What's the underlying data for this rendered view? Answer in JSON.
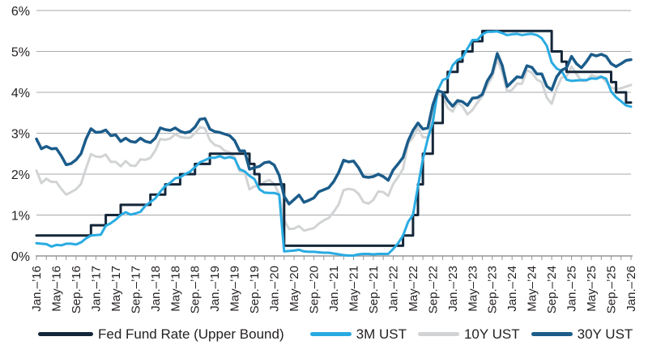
{
  "chart_data": {
    "type": "line",
    "title": "",
    "xlabel": "",
    "ylabel": "",
    "ylim": [
      0,
      6
    ],
    "grid": "horizontal",
    "legend_position": "bottom",
    "axis_color": "#939598",
    "gridline_color": "#a7a9ac",
    "text_color": "#231f20",
    "y_tick_labels": [
      "0%",
      "1%",
      "2%",
      "3%",
      "4%",
      "5%",
      "6%"
    ],
    "x_start": "Jan 2016",
    "x_end": "Jan 2026",
    "months_per_point": 1,
    "minor_tick_every_months": 2,
    "label_every_months": 4,
    "x_tick_labels": [
      "Jan.–’16",
      "May–’16",
      "Sep.–’16",
      "Jan.–’17",
      "May–’17",
      "Sep.–’17",
      "Jan.–’18",
      "May–’18",
      "Sep.–’18",
      "Jan.–’19",
      "May–’19",
      "Sep.–’19",
      "Jan.–’20",
      "May–’20",
      "Sep.–’20",
      "Jan.–’21",
      "May–’21",
      "Sep.–’21",
      "Jan.–’22",
      "May–’22",
      "Sep.–’22",
      "Jan.–’23",
      "May–’23",
      "Sep.–’23",
      "Jan.–’24",
      "May–’24",
      "Sep.–’24",
      "Jan.–’25",
      "May–’25",
      "Sep.–’25",
      "Jan.–’26"
    ],
    "series": [
      {
        "id": "fed-fund-rate",
        "name": "Fed Fund Rate (Upper Bound)",
        "color": "#142639",
        "width": 3,
        "step": true,
        "z": 2,
        "values": [
          0.5,
          0.5,
          0.5,
          0.5,
          0.5,
          0.5,
          0.5,
          0.5,
          0.5,
          0.5,
          0.5,
          0.75,
          0.75,
          0.75,
          1,
          1,
          1,
          1.25,
          1.25,
          1.25,
          1.25,
          1.25,
          1.25,
          1.5,
          1.5,
          1.5,
          1.75,
          1.75,
          1.75,
          2,
          2,
          2,
          2.25,
          2.25,
          2.25,
          2.5,
          2.5,
          2.5,
          2.5,
          2.5,
          2.5,
          2.5,
          2.5,
          2.25,
          2,
          1.75,
          1.75,
          1.75,
          1.75,
          1.75,
          0.25,
          0.25,
          0.25,
          0.25,
          0.25,
          0.25,
          0.25,
          0.25,
          0.25,
          0.25,
          0.25,
          0.25,
          0.25,
          0.25,
          0.25,
          0.25,
          0.25,
          0.25,
          0.25,
          0.25,
          0.25,
          0.25,
          0.25,
          0.25,
          0.5,
          0.5,
          1,
          1.75,
          2.5,
          2.5,
          3.25,
          3.25,
          4,
          4.5,
          4.5,
          4.75,
          5,
          5,
          5.25,
          5.25,
          5.5,
          5.5,
          5.5,
          5.5,
          5.5,
          5.5,
          5.5,
          5.5,
          5.5,
          5.5,
          5.5,
          5.5,
          5.5,
          5.5,
          5,
          5,
          4.75,
          4.5,
          4.5,
          4.5,
          4.5,
          4.5,
          4.5,
          4.5,
          4.5,
          4.5,
          4.25,
          4,
          4,
          3.75,
          3.75
        ]
      },
      {
        "id": "3m-ust",
        "name": "3M UST",
        "color": "#29abe2",
        "width": 3,
        "step": false,
        "z": 3,
        "values": [
          0.31,
          0.3,
          0.29,
          0.23,
          0.27,
          0.26,
          0.3,
          0.3,
          0.28,
          0.33,
          0.43,
          0.5,
          0.51,
          0.52,
          0.74,
          0.8,
          0.89,
          1,
          1.07,
          1.01,
          1.04,
          1.08,
          1.23,
          1.32,
          1.41,
          1.57,
          1.71,
          1.79,
          1.9,
          1.92,
          2,
          2.06,
          2.17,
          2.29,
          2.34,
          2.4,
          2.4,
          2.44,
          2.39,
          2.42,
          2.38,
          2.12,
          2.07,
          1.96,
          1.88,
          1.63,
          1.55,
          1.54,
          1.54,
          1.5,
          0.11,
          0.12,
          0.13,
          0.15,
          0.11,
          0.1,
          0.1,
          0.09,
          0.08,
          0.08,
          0.06,
          0.04,
          0.02,
          0.01,
          0.01,
          0.04,
          0.05,
          0.05,
          0.04,
          0.05,
          0.05,
          0.05,
          0.17,
          0.31,
          0.5,
          0.83,
          1.01,
          1.7,
          2.37,
          2.87,
          3.26,
          4.05,
          4.3,
          4.35,
          4.66,
          4.79,
          4.85,
          5.07,
          5.28,
          5.28,
          5.42,
          5.48,
          5.48,
          5.49,
          5.45,
          5.4,
          5.42,
          5.43,
          5.4,
          5.42,
          5.43,
          5.4,
          5.32,
          5.14,
          4.73,
          4.58,
          4.52,
          4.31,
          4.28,
          4.29,
          4.3,
          4.3,
          4.34,
          4.33,
          4.38,
          4.33,
          4.02,
          3.88,
          3.78,
          3.68,
          3.65
        ]
      },
      {
        "id": "10y-ust",
        "name": "10Y UST",
        "color": "#d1d3d4",
        "width": 3,
        "step": false,
        "z": 1,
        "values": [
          2.09,
          1.78,
          1.89,
          1.81,
          1.81,
          1.64,
          1.5,
          1.56,
          1.63,
          1.76,
          2.14,
          2.49,
          2.43,
          2.42,
          2.48,
          2.3,
          2.3,
          2.19,
          2.32,
          2.21,
          2.2,
          2.36,
          2.35,
          2.4,
          2.58,
          2.86,
          2.84,
          2.87,
          2.98,
          2.91,
          2.89,
          2.89,
          3,
          3.15,
          3.12,
          2.83,
          2.71,
          2.68,
          2.57,
          2.53,
          2.4,
          2.07,
          2.06,
          1.63,
          1.7,
          1.71,
          1.81,
          1.86,
          1.76,
          1.5,
          0.87,
          0.66,
          0.67,
          0.73,
          0.62,
          0.65,
          0.68,
          0.79,
          0.87,
          0.93,
          1.08,
          1.26,
          1.61,
          1.64,
          1.62,
          1.52,
          1.32,
          1.28,
          1.37,
          1.58,
          1.56,
          1.47,
          1.76,
          1.93,
          2.13,
          2.75,
          2.9,
          3.14,
          2.9,
          2.9,
          3.52,
          3.98,
          3.89,
          3.62,
          3.53,
          3.75,
          3.66,
          3.46,
          3.57,
          3.75,
          3.9,
          4.17,
          4.38,
          4.8,
          4.5,
          4.02,
          4.06,
          4.21,
          4.21,
          4.54,
          4.48,
          4.31,
          4.25,
          3.87,
          3.72,
          4.1,
          4.36,
          4.39,
          4.63,
          4.45,
          4.28,
          4.28,
          4.42,
          4.38,
          4.39,
          4.26,
          4.12,
          4.08,
          4.1,
          4.14,
          4.18
        ]
      },
      {
        "id": "30y-ust",
        "name": "30Y UST",
        "color": "#1b5c8a",
        "width": 3.5,
        "step": false,
        "z": 4,
        "values": [
          2.86,
          2.62,
          2.68,
          2.62,
          2.63,
          2.45,
          2.23,
          2.26,
          2.35,
          2.5,
          2.86,
          3.11,
          3.02,
          3.03,
          3.08,
          2.94,
          2.96,
          2.8,
          2.88,
          2.8,
          2.78,
          2.88,
          2.8,
          2.77,
          2.88,
          3.13,
          3.09,
          3.07,
          3.13,
          3.05,
          3.01,
          3.04,
          3.15,
          3.34,
          3.36,
          3.1,
          3.04,
          3.02,
          2.98,
          2.94,
          2.82,
          2.57,
          2.57,
          2.12,
          2.16,
          2.19,
          2.28,
          2.3,
          2.22,
          1.97,
          1.46,
          1.27,
          1.38,
          1.49,
          1.31,
          1.36,
          1.42,
          1.57,
          1.62,
          1.67,
          1.82,
          2.04,
          2.34,
          2.3,
          2.32,
          2.16,
          1.94,
          1.92,
          1.94,
          2,
          1.94,
          1.85,
          2.1,
          2.25,
          2.41,
          2.81,
          3.07,
          3.25,
          3.1,
          3.13,
          3.69,
          4.04,
          4,
          3.8,
          3.66,
          3.8,
          3.77,
          3.68,
          3.86,
          3.87,
          3.95,
          4.28,
          4.47,
          4.95,
          4.66,
          4.14,
          4.26,
          4.38,
          4.36,
          4.65,
          4.61,
          4.45,
          4.45,
          4.15,
          4.06,
          4.38,
          4.54,
          4.6,
          4.88,
          4.7,
          4.6,
          4.75,
          4.93,
          4.89,
          4.93,
          4.88,
          4.7,
          4.63,
          4.7,
          4.78,
          4.8
        ]
      }
    ]
  },
  "legend": {
    "items": [
      "Fed Fund Rate (Upper Bound)",
      "3M UST",
      "10Y UST",
      "30Y UST"
    ]
  }
}
